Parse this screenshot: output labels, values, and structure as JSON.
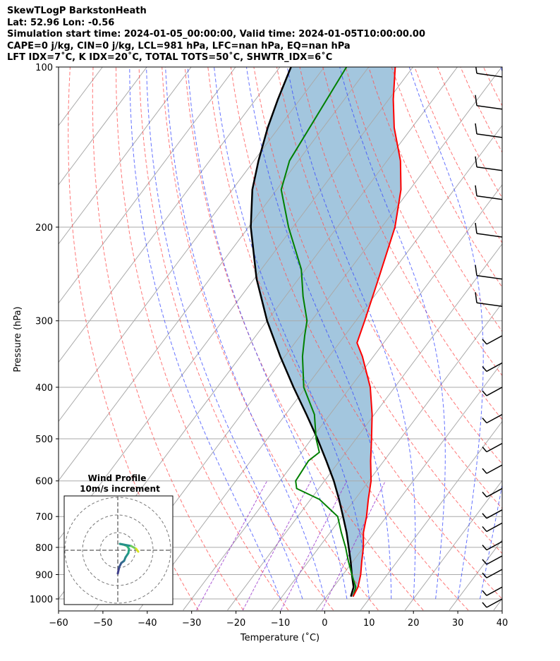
{
  "header": {
    "line1": "SkewTLogP BarkstonHeath",
    "line2": "Lat: 52.96   Lon: -0.56",
    "line3": "Simulation start time: 2024-01-05_00:00:00, Valid time: 2024-01-05T10:00:00.00",
    "line4": "CAPE=0 j/kg, CIN=0 j/kg, LCL=981 hPa, LFC=nan hPa, EQ=nan hPa",
    "line5": "LFT IDX=7˚C, K IDX=20˚C, TOTAL TOTS=50˚C, SHWTR_IDX=6˚C"
  },
  "colors": {
    "temperature": "#ff0000",
    "dewpoint": "#008000",
    "parcel": "#000000",
    "cape_fill": "#a3c6de",
    "dry_adiabat": "#ff5555",
    "moist_adiabat": "#3344ff",
    "mixing_ratio": "#9933cc",
    "isotherm": "#aaaaaa"
  },
  "chart_data": {
    "type": "line",
    "title": "SkewTLogP BarkstonHeath",
    "xlabel": "Temperature (˚C)",
    "ylabel": "Pressure (hPa)",
    "xlim": [
      -60,
      40
    ],
    "ylim": [
      1050,
      100
    ],
    "x_ticks": [
      "−60",
      "−50",
      "−40",
      "−30",
      "−20",
      "−10",
      "0",
      "10",
      "20",
      "30",
      "40"
    ],
    "x_tick_values": [
      -60,
      -50,
      -40,
      -30,
      -20,
      -10,
      0,
      10,
      20,
      30,
      40
    ],
    "y_ticks": [
      "100",
      "200",
      "300",
      "400",
      "500",
      "600",
      "700",
      "800",
      "900",
      "1000"
    ],
    "y_tick_values": [
      100,
      200,
      300,
      400,
      500,
      600,
      700,
      800,
      900,
      1000
    ],
    "series": [
      {
        "name": "temperature",
        "p": [
          990,
          950,
          900,
          850,
          800,
          750,
          700,
          650,
          600,
          550,
          500,
          450,
          400,
          350,
          330,
          300,
          250,
          200,
          170,
          150,
          130,
          115,
          100
        ],
        "t": [
          6,
          5.5,
          4,
          2,
          0,
          -2.5,
          -4.5,
          -7,
          -9.5,
          -13,
          -16.5,
          -20.5,
          -25.5,
          -32.5,
          -36,
          -38,
          -42,
          -47,
          -52,
          -57,
          -64,
          -69,
          -74
        ]
      },
      {
        "name": "dewpoint",
        "p": [
          990,
          950,
          900,
          850,
          800,
          750,
          700,
          650,
          620,
          600,
          550,
          530,
          500,
          450,
          400,
          350,
          320,
          300,
          270,
          240,
          200,
          170,
          150,
          100
        ],
        "t": [
          6,
          5,
          2,
          -1,
          -4,
          -7.5,
          -11,
          -18,
          -25,
          -26.5,
          -27,
          -26,
          -29,
          -33.5,
          -40.5,
          -46,
          -49,
          -51,
          -56,
          -61,
          -71,
          -79,
          -82,
          -85
        ]
      },
      {
        "name": "parcel",
        "p": [
          990,
          950,
          900,
          850,
          800,
          750,
          700,
          650,
          600,
          550,
          500,
          450,
          400,
          350,
          300,
          250,
          200,
          170,
          150,
          130,
          115,
          100
        ],
        "t": [
          5.5,
          4.5,
          2,
          -0.5,
          -3.3,
          -6.3,
          -9.8,
          -13.6,
          -17.9,
          -23,
          -28.7,
          -35.3,
          -42.8,
          -51,
          -60,
          -69.5,
          -79.5,
          -85.5,
          -89,
          -92.5,
          -95,
          -97.5
        ]
      }
    ],
    "wind_barbs": {
      "p": [
        100,
        115,
        130,
        150,
        170,
        200,
        240,
        270,
        320,
        360,
        400,
        450,
        510,
        560,
        620,
        680,
        720,
        780,
        830,
        880,
        950,
        1000
      ],
      "description": "wind barbs along right edge"
    },
    "inset": {
      "title": "Wind Profile",
      "subtitle": "10m/s increment",
      "type": "hodograph"
    }
  }
}
